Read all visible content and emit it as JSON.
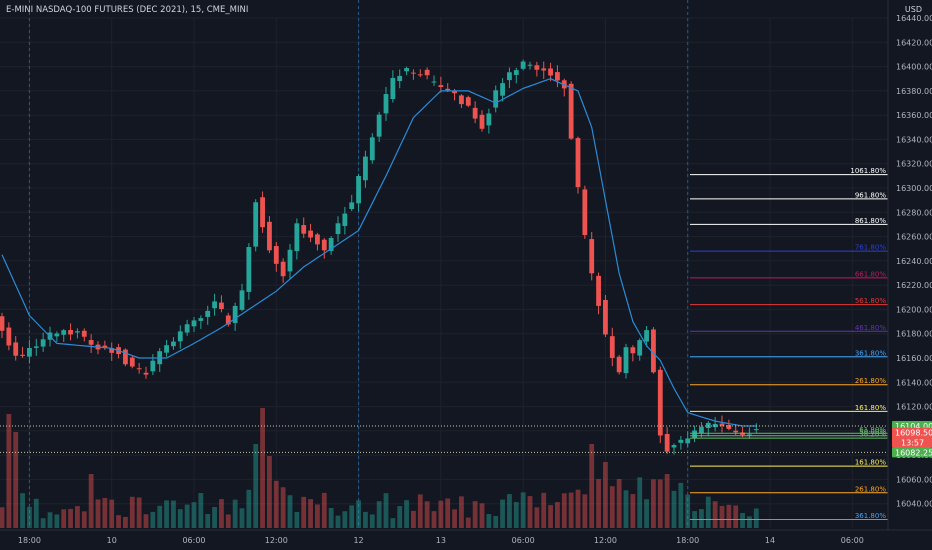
{
  "header": {
    "symbol_title": "E-MINI NASDAQ-100 FUTURES (DEC 2021), 15, CME_MINI",
    "currency": "USD"
  },
  "colors": {
    "background": "#131722",
    "up": "#26a69a",
    "down": "#ef5350",
    "ma_line": "#2a8bd6",
    "grid": "#1e222d",
    "text": "#b2b5be"
  },
  "chart_data": {
    "type": "candlestick",
    "title": "E-MINI NASDAQ-100 FUTURES (DEC 2021), 15, CME_MINI",
    "ylim": [
      16020,
      16440
    ],
    "y_ticks": [
      16040,
      16060,
      16080,
      16100,
      16120,
      16140,
      16160,
      16180,
      16200,
      16220,
      16240,
      16260,
      16280,
      16300,
      16320,
      16340,
      16360,
      16380,
      16400,
      16420,
      16440
    ],
    "y_tick_labels": [
      "16040.00",
      "16060.00",
      "16080.00",
      "16100.00",
      "16120.00",
      "16140.00",
      "16160.00",
      "16180.00",
      "16200.00",
      "16220.00",
      "16240.00",
      "16260.00",
      "16280.00",
      "16300.00",
      "16320.00",
      "16340.00",
      "16360.00",
      "16380.00",
      "16400.00",
      "16420.00",
      "16440.00"
    ],
    "x_ticks": [
      {
        "label": "18:00",
        "bar": 4
      },
      {
        "label": "10",
        "bar": 16
      },
      {
        "label": "06:00",
        "bar": 28
      },
      {
        "label": "12:00",
        "bar": 40
      },
      {
        "label": "12",
        "bar": 52
      },
      {
        "label": "13",
        "bar": 64
      },
      {
        "label": "06:00",
        "bar": 76
      },
      {
        "label": "12:00",
        "bar": 88
      },
      {
        "label": "18:00",
        "bar": 100
      },
      {
        "label": "14",
        "bar": 112
      },
      {
        "label": "06:00",
        "bar": 124
      }
    ],
    "session_breaks": [
      4,
      52,
      100
    ],
    "bars_total": 130,
    "price_path": [
      [
        0,
        16195
      ],
      [
        3,
        16160
      ],
      [
        6,
        16170
      ],
      [
        9,
        16182
      ],
      [
        12,
        16180
      ],
      [
        15,
        16170
      ],
      [
        18,
        16165
      ],
      [
        20,
        16150
      ],
      [
        22,
        16148
      ],
      [
        24,
        16165
      ],
      [
        26,
        16175
      ],
      [
        28,
        16188
      ],
      [
        30,
        16195
      ],
      [
        32,
        16205
      ],
      [
        34,
        16190
      ],
      [
        36,
        16215
      ],
      [
        38,
        16290
      ],
      [
        40,
        16250
      ],
      [
        42,
        16230
      ],
      [
        44,
        16270
      ],
      [
        46,
        16260
      ],
      [
        48,
        16250
      ],
      [
        50,
        16270
      ],
      [
        52,
        16290
      ],
      [
        54,
        16325
      ],
      [
        56,
        16360
      ],
      [
        58,
        16390
      ],
      [
        60,
        16398
      ],
      [
        62,
        16395
      ],
      [
        64,
        16385
      ],
      [
        66,
        16380
      ],
      [
        68,
        16372
      ],
      [
        70,
        16360
      ],
      [
        71,
        16350
      ],
      [
        73,
        16378
      ],
      [
        75,
        16396
      ],
      [
        77,
        16402
      ],
      [
        79,
        16398
      ],
      [
        81,
        16394
      ],
      [
        83,
        16385
      ],
      [
        84,
        16340
      ],
      [
        85,
        16300
      ],
      [
        86,
        16260
      ],
      [
        87,
        16230
      ],
      [
        88,
        16205
      ],
      [
        89,
        16180
      ],
      [
        90,
        16160
      ],
      [
        91,
        16150
      ],
      [
        92,
        16170
      ],
      [
        93,
        16165
      ],
      [
        94,
        16175
      ],
      [
        95,
        16185
      ],
      [
        96,
        16150
      ],
      [
        97,
        16095
      ],
      [
        98,
        16085
      ],
      [
        100,
        16090
      ],
      [
        102,
        16100
      ],
      [
        104,
        16104
      ],
      [
        106,
        16102
      ],
      [
        108,
        16098
      ],
      [
        110,
        16100
      ]
    ],
    "ma_path": [
      [
        0,
        16245
      ],
      [
        4,
        16195
      ],
      [
        8,
        16172
      ],
      [
        12,
        16170
      ],
      [
        16,
        16168
      ],
      [
        20,
        16160
      ],
      [
        24,
        16160
      ],
      [
        28,
        16172
      ],
      [
        32,
        16185
      ],
      [
        36,
        16200
      ],
      [
        40,
        16215
      ],
      [
        44,
        16235
      ],
      [
        48,
        16250
      ],
      [
        52,
        16265
      ],
      [
        56,
        16310
      ],
      [
        60,
        16358
      ],
      [
        64,
        16380
      ],
      [
        68,
        16380
      ],
      [
        72,
        16370
      ],
      [
        76,
        16382
      ],
      [
        80,
        16390
      ],
      [
        84,
        16380
      ],
      [
        86,
        16350
      ],
      [
        88,
        16290
      ],
      [
        90,
        16230
      ],
      [
        92,
        16190
      ],
      [
        94,
        16170
      ],
      [
        96,
        16158
      ],
      [
        98,
        16135
      ],
      [
        100,
        16115
      ],
      [
        104,
        16108
      ],
      [
        108,
        16104
      ],
      [
        110,
        16104
      ]
    ],
    "price_labels": [
      {
        "value": 16104.0,
        "text": "16104.00",
        "color": "#4caf50"
      },
      {
        "value": 16098.5,
        "text": "16098.50",
        "extra": "13:57",
        "color": "#ef5350"
      },
      {
        "value": 16082.25,
        "text": "16082.25",
        "color": "#4caf50"
      }
    ],
    "dotted_levels": [
      16104.0,
      16082.25
    ],
    "fib_levels": [
      {
        "label": "1061.80%",
        "value": 16311,
        "color": "#ffffff"
      },
      {
        "label": "961.80%",
        "value": 16291,
        "color": "#ffffff"
      },
      {
        "label": "861.80%",
        "value": 16270,
        "color": "#ffffff"
      },
      {
        "label": "761.80%",
        "value": 16248,
        "color": "#2b3fd1"
      },
      {
        "label": "661.80%",
        "value": 16226,
        "color": "#c2185b"
      },
      {
        "label": "561.80%",
        "value": 16204,
        "color": "#e53935"
      },
      {
        "label": "461.80%",
        "value": 16182,
        "color": "#5e35b1"
      },
      {
        "label": "361.80%",
        "value": 16161,
        "color": "#42a5f5"
      },
      {
        "label": "261.80%",
        "value": 16138,
        "color": "#ffa726"
      },
      {
        "label": "161.80%",
        "value": 16116,
        "color": "#ffee58"
      },
      {
        "label": "61.80%",
        "value": 16098,
        "color": "#66bb6a"
      },
      {
        "label": "50.00%",
        "value": 16096,
        "color": "#66bb6a"
      },
      {
        "label": "38.20%",
        "value": 16094,
        "color": "#66bb6a"
      },
      {
        "label": "161.80%",
        "value": 16071,
        "color": "#ffee58"
      },
      {
        "label": "261.80%",
        "value": 16049,
        "color": "#ffa726"
      },
      {
        "label": "361.80%",
        "value": 16027,
        "color": "#42a5f5"
      }
    ],
    "volume_spikes": [
      {
        "bar": 1,
        "v": 0.95
      },
      {
        "bar": 2,
        "v": 0.8
      },
      {
        "bar": 13,
        "v": 0.45
      },
      {
        "bar": 37,
        "v": 0.7
      },
      {
        "bar": 38,
        "v": 1.0
      },
      {
        "bar": 39,
        "v": 0.6
      },
      {
        "bar": 86,
        "v": 0.7
      },
      {
        "bar": 88,
        "v": 0.55
      },
      {
        "bar": 97,
        "v": 0.45
      }
    ]
  }
}
